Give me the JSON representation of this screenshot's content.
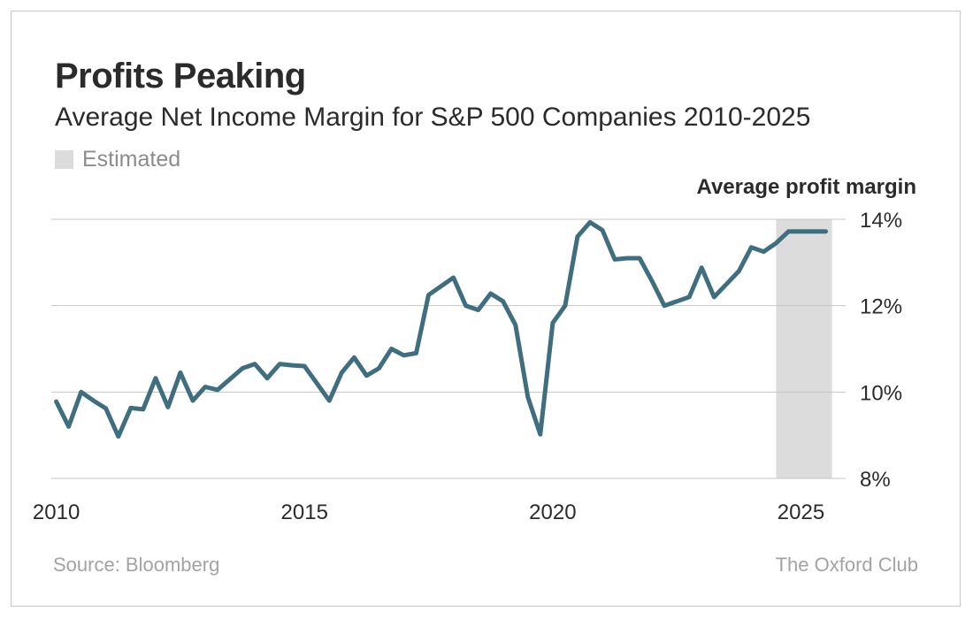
{
  "header": {
    "title": "Profits Peaking",
    "subtitle": "Average Net Income Margin for S&P 500 Companies 2010-2025",
    "legend_label": "Estimated",
    "y_axis_title": "Average profit margin"
  },
  "footer": {
    "source": "Source: Bloomberg",
    "brand": "The Oxford Club"
  },
  "colors": {
    "line": "#3f6e7e",
    "estimated_band": "#dcdcdc",
    "gridline": "#c6c6c6"
  },
  "chart_data": {
    "type": "line",
    "title": "Profits Peaking",
    "subtitle": "Average Net Income Margin for S&P 500 Companies 2010-2025",
    "ylabel": "Average profit margin",
    "xlim": [
      2009.9,
      2025.9
    ],
    "ylim": [
      8,
      14
    ],
    "y_ticks": [
      {
        "value": 14,
        "label": "14%"
      },
      {
        "value": 12,
        "label": "12%"
      },
      {
        "value": 10,
        "label": "10%"
      },
      {
        "value": 8,
        "label": "8%"
      }
    ],
    "x_ticks": [
      {
        "value": 2010,
        "label": "2010"
      },
      {
        "value": 2015,
        "label": "2015"
      },
      {
        "value": 2020,
        "label": "2020"
      },
      {
        "value": 2025,
        "label": "2025"
      }
    ],
    "grid": true,
    "estimated_range": [
      2024.5,
      2025.625
    ],
    "x": [
      2010.0,
      2010.25,
      2010.5,
      2010.75,
      2011.0,
      2011.25,
      2011.5,
      2011.75,
      2012.0,
      2012.25,
      2012.5,
      2012.75,
      2013.0,
      2013.25,
      2013.5,
      2013.75,
      2014.0,
      2014.25,
      2014.5,
      2014.75,
      2015.0,
      2015.25,
      2015.5,
      2015.75,
      2016.0,
      2016.25,
      2016.5,
      2016.75,
      2017.0,
      2017.25,
      2017.5,
      2017.75,
      2018.0,
      2018.25,
      2018.5,
      2018.75,
      2019.0,
      2019.25,
      2019.5,
      2019.75,
      2020.0,
      2020.25,
      2020.5,
      2020.75,
      2021.0,
      2021.25,
      2021.5,
      2021.75,
      2022.0,
      2022.25,
      2022.5,
      2022.75,
      2023.0,
      2023.25,
      2023.5,
      2023.75,
      2024.0,
      2024.25,
      2024.5,
      2024.75,
      2025.0,
      2025.25,
      2025.5
    ],
    "series": [
      {
        "values": [
          9.78,
          9.2,
          10.0,
          9.8,
          9.62,
          8.97,
          9.63,
          9.6,
          10.32,
          9.65,
          10.45,
          9.8,
          10.12,
          10.05,
          10.3,
          10.55,
          10.65,
          10.32,
          10.65,
          10.62,
          10.6,
          10.2,
          9.8,
          10.45,
          10.8,
          10.38,
          10.55,
          11.0,
          10.85,
          10.9,
          12.25,
          12.45,
          12.65,
          12.0,
          11.9,
          12.28,
          12.1,
          11.55,
          9.88,
          9.02,
          11.6,
          12.0,
          13.6,
          13.93,
          13.75,
          13.07,
          13.1,
          13.1,
          12.57,
          12.0,
          12.1,
          12.2,
          12.88,
          12.2,
          12.5,
          12.8,
          13.35,
          13.25,
          13.45,
          13.72,
          13.72,
          13.72,
          13.72
        ]
      }
    ]
  }
}
